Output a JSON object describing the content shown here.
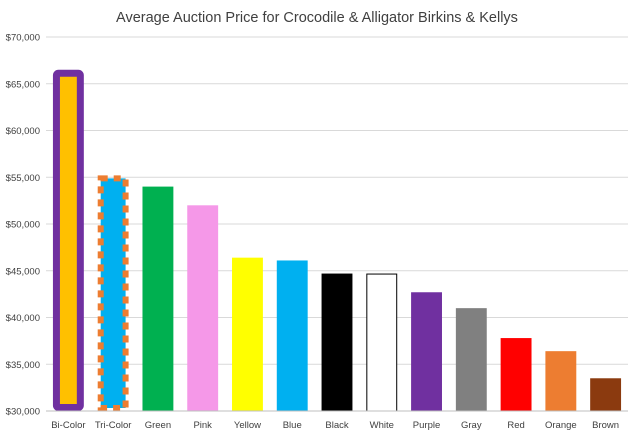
{
  "chart_data": {
    "type": "bar",
    "title": "Average Auction Price for Crocodile & Alligator Birkins & Kellys",
    "xlabel": "",
    "ylabel": "",
    "ylim": [
      30000,
      70000
    ],
    "y_ticks": [
      "$30,000",
      "$35,000",
      "$40,000",
      "$45,000",
      "$50,000",
      "$55,000",
      "$60,000",
      "$65,000",
      "$70,000"
    ],
    "grid": true,
    "legend": "none",
    "categories": [
      "Bi-Color",
      "Tri-Color",
      "Green",
      "Pink",
      "Yellow",
      "Blue",
      "Black",
      "White",
      "Purple",
      "Gray",
      "Red",
      "Orange",
      "Brown"
    ],
    "values": [
      66500,
      55200,
      54000,
      52000,
      46400,
      46100,
      44700,
      44700,
      42700,
      41000,
      37800,
      36400,
      33500
    ],
    "bar_colors": [
      "#FFC000",
      "#00B0F0",
      "#00B050",
      "#F598E8",
      "#FFFF00",
      "#00B0F0",
      "#000000",
      "#FFFFFF",
      "#7030A0",
      "#808080",
      "#FF0000",
      "#ED7D31",
      "#8B3A0F"
    ],
    "bar_outline": [
      "#7030A0",
      "#ED7D31",
      "none",
      "none",
      "none",
      "none",
      "none",
      "#000000",
      "none",
      "none",
      "none",
      "none",
      "none"
    ],
    "bar_outline_style": [
      "solid-thick",
      "dashed-thick",
      "none",
      "none",
      "none",
      "none",
      "none",
      "thin",
      "none",
      "none",
      "none",
      "none",
      "none"
    ]
  }
}
